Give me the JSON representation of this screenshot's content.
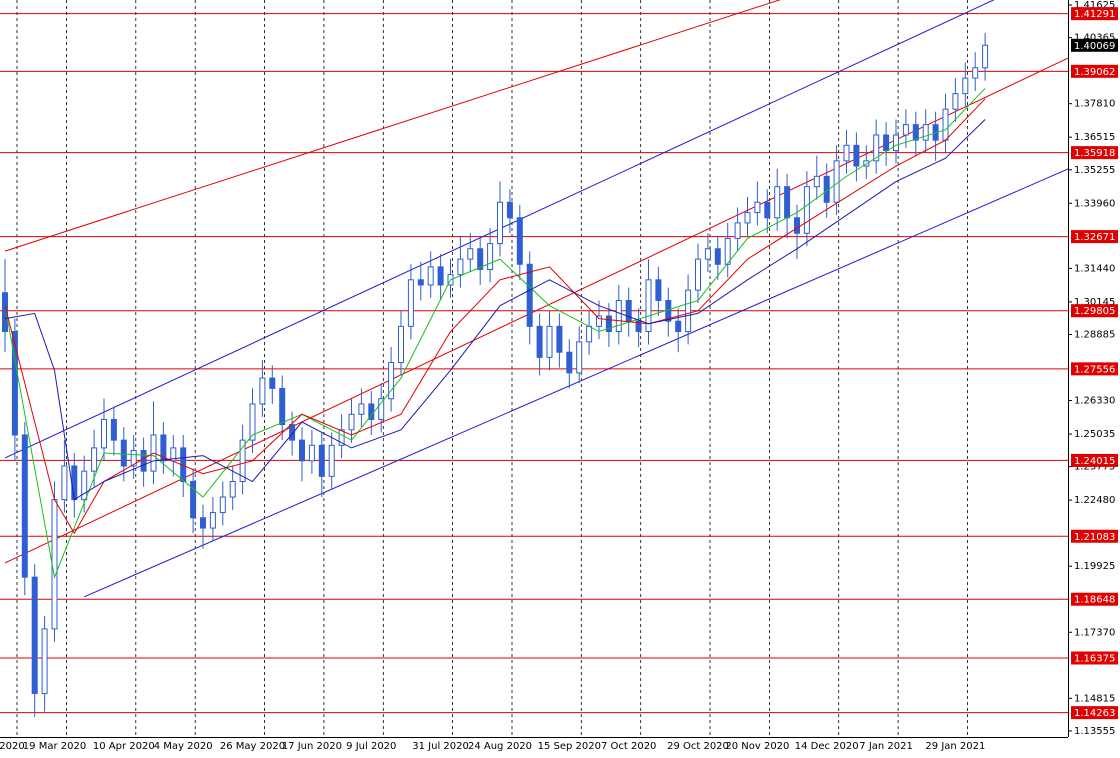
{
  "chart_data": {
    "type": "candlestick",
    "categories": [
      "2020",
      null,
      null,
      null,
      null,
      "19 Mar 2020",
      null,
      null,
      null,
      null,
      null,
      null,
      "10 Apr 2020",
      null,
      null,
      null,
      null,
      null,
      "4 May 2020",
      null,
      null,
      null,
      null,
      null,
      null,
      "26 May 2020",
      null,
      null,
      null,
      null,
      null,
      "17 Jun 2020",
      null,
      null,
      null,
      null,
      null,
      "9 Jul 2020",
      null,
      null,
      null,
      null,
      null,
      null,
      "31 Jul 2020",
      null,
      null,
      null,
      null,
      null,
      "24 Aug 2020",
      null,
      null,
      null,
      null,
      null,
      null,
      "15 Sep 2020",
      null,
      null,
      null,
      null,
      null,
      "7 Oct 2020",
      null,
      null,
      null,
      null,
      null,
      null,
      "29 Oct 2020",
      null,
      null,
      null,
      null,
      null,
      "20 Nov 2020",
      null,
      null,
      null,
      null,
      null,
      null,
      "14 Dec 2020",
      null,
      null,
      null,
      null,
      null,
      "7 Jan 2021",
      null,
      null,
      null,
      null,
      null,
      null,
      "29 Jan 2021",
      null,
      null,
      null
    ],
    "open": [
      1.305,
      1.29,
      1.25,
      1.195,
      1.15,
      1.175,
      1.225,
      1.238,
      1.225,
      1.236,
      1.245,
      1.256,
      1.248,
      1.238,
      1.244,
      1.236,
      1.25,
      1.24,
      1.245,
      1.232,
      1.218,
      1.214,
      1.22,
      1.226,
      1.232,
      1.248,
      1.262,
      1.272,
      1.268,
      1.254,
      1.248,
      1.24,
      1.246,
      1.234,
      1.246,
      1.252,
      1.258,
      1.262,
      1.256,
      1.264,
      1.278,
      1.292,
      1.31,
      1.308,
      1.315,
      1.308,
      1.312,
      1.318,
      1.322,
      1.314,
      1.324,
      1.34,
      1.334,
      1.316,
      1.292,
      1.28,
      1.292,
      1.282,
      1.274,
      1.286,
      1.292,
      1.296,
      1.29,
      1.302,
      1.294,
      1.29,
      1.31,
      1.302,
      1.294,
      1.29,
      1.306,
      1.318,
      1.322,
      1.316,
      1.326,
      1.332,
      1.336,
      1.34,
      1.334,
      1.346,
      1.334,
      1.328,
      1.346,
      1.35,
      1.34,
      1.356,
      1.362,
      1.354,
      1.356,
      1.366,
      1.36,
      1.366,
      1.37,
      1.364,
      1.37,
      1.364,
      1.376,
      1.382,
      1.388,
      1.392
    ],
    "high": [
      1.318,
      1.295,
      1.255,
      1.2,
      1.18,
      1.232,
      1.248,
      1.243,
      1.242,
      1.252,
      1.264,
      1.261,
      1.253,
      1.25,
      1.249,
      1.263,
      1.255,
      1.25,
      1.25,
      1.237,
      1.223,
      1.226,
      1.232,
      1.238,
      1.254,
      1.268,
      1.279,
      1.277,
      1.273,
      1.259,
      1.253,
      1.252,
      1.251,
      1.251,
      1.258,
      1.264,
      1.268,
      1.267,
      1.27,
      1.284,
      1.298,
      1.316,
      1.317,
      1.321,
      1.32,
      1.318,
      1.327,
      1.328,
      1.327,
      1.33,
      1.348,
      1.345,
      1.339,
      1.321,
      1.297,
      1.298,
      1.297,
      1.287,
      1.292,
      1.298,
      1.302,
      1.301,
      1.308,
      1.307,
      1.299,
      1.318,
      1.315,
      1.307,
      1.299,
      1.312,
      1.324,
      1.328,
      1.327,
      1.332,
      1.338,
      1.342,
      1.348,
      1.345,
      1.353,
      1.351,
      1.339,
      1.352,
      1.358,
      1.355,
      1.362,
      1.368,
      1.367,
      1.362,
      1.372,
      1.371,
      1.372,
      1.376,
      1.375,
      1.376,
      1.375,
      1.382,
      1.388,
      1.394,
      1.398,
      1.4055
    ],
    "low": [
      1.282,
      1.24,
      1.188,
      1.141,
      1.143,
      1.17,
      1.22,
      1.218,
      1.22,
      1.23,
      1.24,
      1.242,
      1.232,
      1.233,
      1.23,
      1.231,
      1.235,
      1.234,
      1.226,
      1.212,
      1.206,
      1.209,
      1.215,
      1.221,
      1.227,
      1.243,
      1.257,
      1.262,
      1.248,
      1.242,
      1.232,
      1.235,
      1.226,
      1.229,
      1.241,
      1.247,
      1.253,
      1.25,
      1.251,
      1.259,
      1.273,
      1.287,
      1.302,
      1.303,
      1.302,
      1.303,
      1.307,
      1.313,
      1.308,
      1.309,
      1.319,
      1.328,
      1.31,
      1.285,
      1.273,
      1.275,
      1.276,
      1.268,
      1.27,
      1.281,
      1.287,
      1.284,
      1.285,
      1.288,
      1.284,
      1.285,
      1.296,
      1.288,
      1.282,
      1.285,
      1.301,
      1.313,
      1.31,
      1.311,
      1.321,
      1.327,
      1.331,
      1.328,
      1.329,
      1.326,
      1.318,
      1.323,
      1.341,
      1.334,
      1.335,
      1.351,
      1.348,
      1.349,
      1.351,
      1.354,
      1.355,
      1.361,
      1.358,
      1.359,
      1.356,
      1.359,
      1.371,
      1.377,
      1.383,
      1.387
    ],
    "close": [
      1.29,
      1.25,
      1.195,
      1.15,
      1.175,
      1.225,
      1.238,
      1.225,
      1.236,
      1.245,
      1.256,
      1.248,
      1.238,
      1.244,
      1.236,
      1.25,
      1.24,
      1.245,
      1.232,
      1.218,
      1.214,
      1.22,
      1.226,
      1.232,
      1.248,
      1.262,
      1.272,
      1.268,
      1.254,
      1.248,
      1.24,
      1.246,
      1.234,
      1.246,
      1.252,
      1.258,
      1.262,
      1.256,
      1.264,
      1.278,
      1.292,
      1.31,
      1.308,
      1.315,
      1.308,
      1.312,
      1.318,
      1.322,
      1.314,
      1.324,
      1.34,
      1.334,
      1.316,
      1.292,
      1.28,
      1.292,
      1.282,
      1.274,
      1.286,
      1.292,
      1.296,
      1.29,
      1.302,
      1.294,
      1.29,
      1.31,
      1.302,
      1.294,
      1.29,
      1.306,
      1.318,
      1.322,
      1.316,
      1.326,
      1.332,
      1.336,
      1.34,
      1.334,
      1.346,
      1.334,
      1.328,
      1.346,
      1.35,
      1.34,
      1.356,
      1.362,
      1.354,
      1.356,
      1.366,
      1.36,
      1.366,
      1.37,
      1.364,
      1.37,
      1.364,
      1.376,
      1.382,
      1.388,
      1.392,
      1.4007
    ],
    "color": "#2f5fd0",
    "ylim": [
      1.1332,
      1.4182
    ],
    "yticks": [
      1.41625,
      1.40365,
      {
        "value": 1.3781,
        "label": "1.37810"
      },
      1.36515,
      1.35255,
      {
        "value": 1.3396,
        "label": "1.33960"
      },
      {
        "value": 1.3144,
        "label": "1.31440"
      },
      1.30145,
      1.28885,
      {
        "value": 1.2633,
        "label": "1.26330"
      },
      1.25035,
      1.23775,
      {
        "value": 1.2248,
        "label": "1.22480"
      },
      1.19925,
      {
        "value": 1.1737,
        "label": "1.17370"
      },
      1.14815,
      1.13555
    ],
    "grid": true,
    "levels": {
      "color": "#e00000",
      "values": [
        1.41291,
        1.39062,
        1.35918,
        1.32671,
        1.29805,
        1.27556,
        1.24015,
        1.21083,
        1.18648,
        1.16375,
        1.14263
      ]
    },
    "last_price": 1.40069,
    "moving_averages": [
      {
        "color": "#19c019",
        "x": [
          0,
          5,
          10,
          15,
          20,
          25,
          30,
          35,
          40,
          45,
          50,
          55,
          60,
          65,
          70,
          75,
          80,
          85,
          90,
          95,
          99
        ],
        "values": [
          1.3,
          1.195,
          1.243,
          1.242,
          1.226,
          1.25,
          1.258,
          1.248,
          1.272,
          1.31,
          1.318,
          1.3,
          1.29,
          1.296,
          1.302,
          1.326,
          1.336,
          1.35,
          1.362,
          1.368,
          1.384
        ]
      },
      {
        "color": "#e00000",
        "x": [
          0,
          5,
          7,
          10,
          15,
          20,
          25,
          30,
          35,
          40,
          45,
          50,
          55,
          60,
          65,
          70,
          75,
          80,
          85,
          90,
          95,
          99
        ],
        "values": [
          1.3,
          1.225,
          1.212,
          1.232,
          1.243,
          1.235,
          1.24,
          1.258,
          1.25,
          1.258,
          1.29,
          1.31,
          1.315,
          1.295,
          1.293,
          1.298,
          1.318,
          1.33,
          1.342,
          1.354,
          1.364,
          1.38
        ]
      },
      {
        "color": "#1b1bb0",
        "x": [
          0,
          3,
          5,
          7,
          10,
          15,
          20,
          25,
          30,
          35,
          40,
          45,
          50,
          55,
          60,
          65,
          70,
          75,
          80,
          85,
          90,
          95,
          99
        ],
        "values": [
          1.295,
          1.297,
          1.275,
          1.225,
          1.232,
          1.24,
          1.242,
          1.232,
          1.255,
          1.245,
          1.252,
          1.275,
          1.3,
          1.31,
          1.3,
          1.293,
          1.297,
          1.31,
          1.322,
          1.335,
          1.348,
          1.357,
          1.372
        ]
      }
    ],
    "trend_lines": [
      {
        "color": "#e00000",
        "x": [
          0,
          77
        ],
        "values": [
          1.3211,
          1.4167
        ]
      },
      {
        "color": "#e00000",
        "x": [
          0,
          99
        ],
        "values": [
          1.2005,
          1.3805
        ]
      },
      {
        "color": "#1b1bd0",
        "x": [
          0,
          99
        ],
        "values": [
          1.2411,
          1.4167
        ]
      },
      {
        "color": "#1b1bd0",
        "x": [
          8,
          99
        ],
        "values": [
          1.1874,
          1.3389
        ]
      }
    ]
  }
}
